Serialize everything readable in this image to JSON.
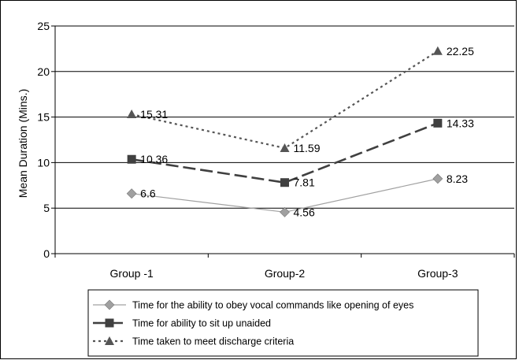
{
  "chart_data": {
    "type": "line",
    "categories": [
      "Group -1",
      "Group-2",
      "Group-3"
    ],
    "ylabel": "Mean Duration (Mins.)",
    "xlabel": "",
    "ylim": [
      0,
      25
    ],
    "yticks": [
      0,
      5,
      10,
      15,
      20,
      25
    ],
    "grid": true,
    "legend_position": "bottom",
    "series": [
      {
        "name": "Time for the ability to obey vocal commands like opening of eyes",
        "values": [
          6.6,
          4.56,
          8.23
        ],
        "labels": [
          "6.6",
          "4.56",
          "8.23"
        ],
        "color": "#a0a0a0",
        "marker": "diamond",
        "line_style": "solid"
      },
      {
        "name": "Time for ability to sit up unaided",
        "values": [
          10.36,
          7.81,
          14.33
        ],
        "labels": [
          "10.36",
          "7.81",
          "14.33"
        ],
        "color": "#404040",
        "marker": "square",
        "line_style": "dashed"
      },
      {
        "name": "Time taken to meet  discharge criteria",
        "values": [
          15.31,
          11.59,
          22.25
        ],
        "labels": [
          "15.31",
          "11.59",
          "22.25"
        ],
        "color": "#555555",
        "marker": "triangle",
        "line_style": "dotted"
      }
    ]
  }
}
